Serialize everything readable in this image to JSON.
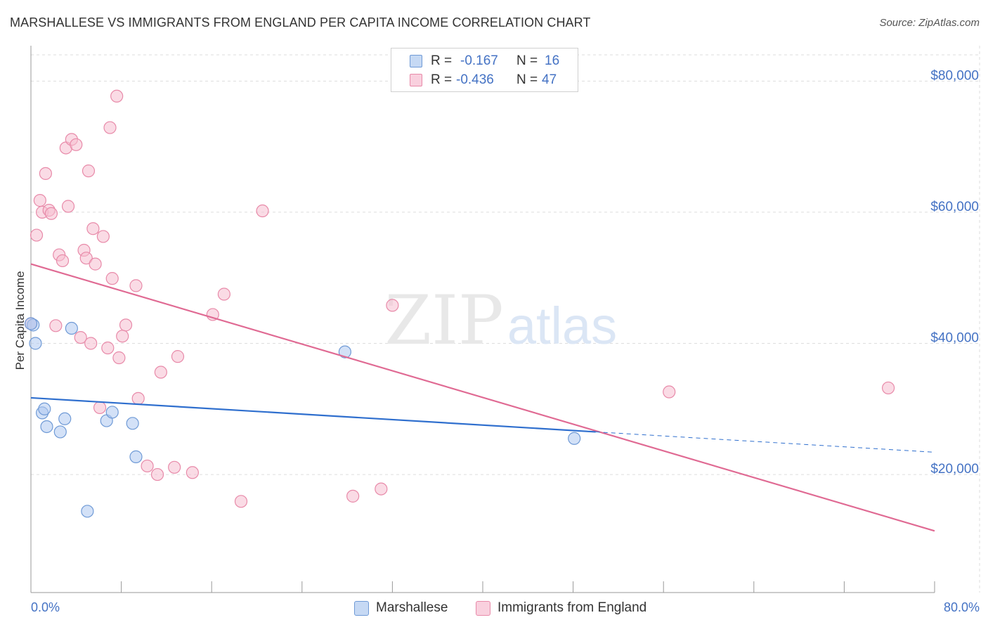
{
  "title": "MARSHALLESE VS IMMIGRANTS FROM ENGLAND PER CAPITA INCOME CORRELATION CHART",
  "source": "Source: ZipAtlas.com",
  "watermark": {
    "zip": "ZIP",
    "atlas": "atlas"
  },
  "legend_top": {
    "rows": [
      {
        "r_label": "R =",
        "r_value": "-0.167",
        "n_label": "N =",
        "n_value": "16"
      },
      {
        "r_label": "R =",
        "r_value": "-0.436",
        "n_label": "N =",
        "n_value": "47"
      }
    ]
  },
  "legend_bottom": {
    "items": [
      {
        "label": "Marshallese"
      },
      {
        "label": "Immigrants from England"
      }
    ]
  },
  "colors": {
    "blue_fill": "#aec8f0",
    "blue_stroke": "#6f9ad6",
    "blue_line": "#2f6fce",
    "pink_fill": "#f6bdd0",
    "pink_stroke": "#e88aa9",
    "pink_line": "#e06a93",
    "grid": "#dddddd",
    "axis_text": "#4472c4"
  },
  "chart_data": {
    "type": "scatter",
    "title": "MARSHALLESE VS IMMIGRANTS FROM ENGLAND PER CAPITA INCOME CORRELATION CHART",
    "xlabel": "",
    "ylabel": "Per Capita Income",
    "xlim": [
      0,
      80
    ],
    "ylim": [
      2000,
      84000
    ],
    "x_tick_labels": {
      "min": "0.0%",
      "max": "80.0%"
    },
    "y_ticks": [
      20000,
      40000,
      60000,
      80000
    ],
    "y_tick_labels": [
      "$20,000",
      "$40,000",
      "$60,000",
      "$80,000"
    ],
    "series": [
      {
        "name": "Marshallese",
        "color": "blue",
        "points": [
          [
            0.2,
            42800
          ],
          [
            0.4,
            40000
          ],
          [
            1.0,
            29400
          ],
          [
            1.2,
            30000
          ],
          [
            1.4,
            27300
          ],
          [
            2.6,
            26500
          ],
          [
            3.0,
            28500
          ],
          [
            3.6,
            42300
          ],
          [
            5.0,
            14400
          ],
          [
            6.7,
            28200
          ],
          [
            7.2,
            29500
          ],
          [
            9.0,
            27800
          ],
          [
            9.3,
            22700
          ],
          [
            27.8,
            38700
          ],
          [
            48.1,
            25500
          ],
          [
            0.0,
            43000
          ]
        ],
        "trend": {
          "x0": 0,
          "y0": 31700,
          "x1": 50,
          "y1": 26500,
          "dash_x1": 80,
          "dash_y1": 23400
        }
      },
      {
        "name": "Immigrants from England",
        "color": "pink",
        "points": [
          [
            0.0,
            43000
          ],
          [
            0.5,
            56500
          ],
          [
            0.8,
            61800
          ],
          [
            1.0,
            60000
          ],
          [
            1.3,
            65900
          ],
          [
            1.6,
            60300
          ],
          [
            1.8,
            59800
          ],
          [
            2.2,
            42700
          ],
          [
            2.5,
            53500
          ],
          [
            2.8,
            52600
          ],
          [
            3.1,
            69800
          ],
          [
            3.3,
            60900
          ],
          [
            3.6,
            71100
          ],
          [
            4.0,
            70300
          ],
          [
            4.4,
            40900
          ],
          [
            4.7,
            54200
          ],
          [
            4.9,
            53000
          ],
          [
            5.1,
            66300
          ],
          [
            5.3,
            40000
          ],
          [
            5.5,
            57500
          ],
          [
            5.7,
            52100
          ],
          [
            6.1,
            30200
          ],
          [
            6.4,
            56300
          ],
          [
            6.8,
            39300
          ],
          [
            7.0,
            72900
          ],
          [
            7.2,
            49900
          ],
          [
            7.6,
            77700
          ],
          [
            7.8,
            37800
          ],
          [
            8.1,
            41100
          ],
          [
            8.4,
            42800
          ],
          [
            9.3,
            48800
          ],
          [
            9.5,
            31600
          ],
          [
            10.3,
            21300
          ],
          [
            11.2,
            20000
          ],
          [
            11.5,
            35600
          ],
          [
            12.7,
            21100
          ],
          [
            13.0,
            38000
          ],
          [
            14.3,
            20300
          ],
          [
            16.1,
            44400
          ],
          [
            17.1,
            47500
          ],
          [
            18.6,
            15900
          ],
          [
            20.5,
            60200
          ],
          [
            28.5,
            16700
          ],
          [
            31.0,
            17800
          ],
          [
            32.0,
            45800
          ],
          [
            56.5,
            32600
          ],
          [
            75.9,
            33200
          ]
        ],
        "trend": {
          "x0": 0,
          "y0": 52100,
          "x1": 80,
          "y1": 11400
        }
      }
    ]
  }
}
